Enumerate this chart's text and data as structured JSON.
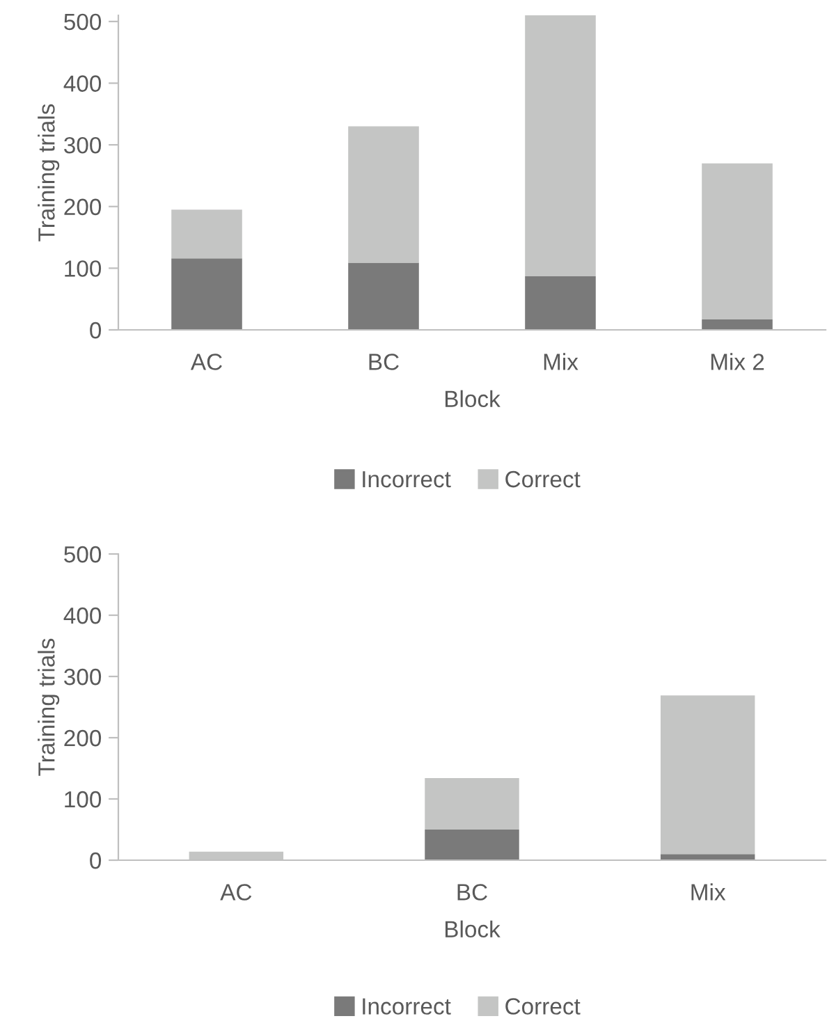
{
  "chart_data": [
    {
      "type": "bar",
      "stacked": true,
      "xlabel": "Block",
      "ylabel": "Training trials",
      "categories": [
        "AC",
        "BC",
        "Mix",
        "Mix 2"
      ],
      "ylim": [
        0,
        510
      ],
      "yticks": [
        0,
        100,
        200,
        300,
        400,
        500
      ],
      "grid": false,
      "legend": "bottom",
      "series": [
        {
          "name": "Incorrect",
          "color": "#7a7a7a",
          "values": [
            116,
            109,
            87,
            17
          ]
        },
        {
          "name": "Correct",
          "color": "#c4c5c4",
          "values": [
            79,
            221,
            423,
            253
          ]
        }
      ]
    },
    {
      "type": "bar",
      "stacked": true,
      "xlabel": "Block",
      "ylabel": "Training trials",
      "categories": [
        "AC",
        "BC",
        "Mix"
      ],
      "ylim": [
        0,
        500
      ],
      "yticks": [
        0,
        100,
        200,
        300,
        400,
        500
      ],
      "grid": false,
      "legend": "bottom",
      "series": [
        {
          "name": "Incorrect",
          "color": "#7a7a7a",
          "values": [
            0,
            50,
            10
          ]
        },
        {
          "name": "Correct",
          "color": "#c4c5c4",
          "values": [
            14,
            84,
            259
          ]
        }
      ]
    }
  ]
}
